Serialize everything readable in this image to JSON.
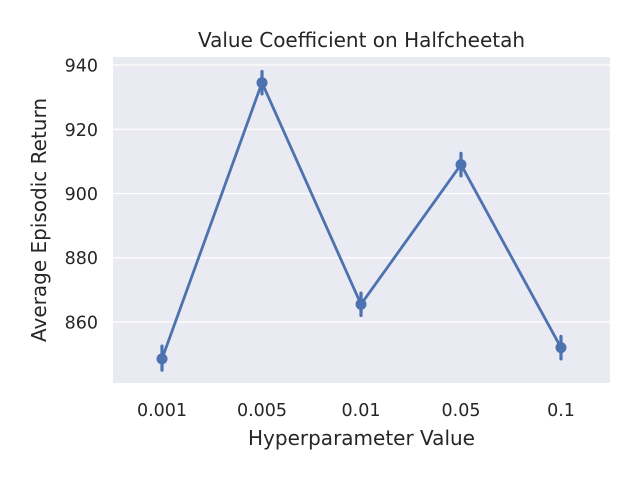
{
  "chart_data": {
    "type": "line",
    "title": "Value Coefficient on Halfcheetah",
    "xlabel": "Hyperparameter Value",
    "ylabel": "Average Episodic Return",
    "categories": [
      "0.001",
      "0.005",
      "0.01",
      "0.05",
      "0.1"
    ],
    "series": [
      {
        "values": [
          848.5,
          934.5,
          865.5,
          909.0,
          852.0
        ],
        "ci_low": [
          845.0,
          931.0,
          862.0,
          905.5,
          848.5
        ],
        "ci_high": [
          852.5,
          938.0,
          869.0,
          912.5,
          855.5
        ],
        "color": "#4c72b0"
      }
    ],
    "yticks": [
      860,
      880,
      900,
      920,
      940
    ],
    "ylim": [
      841,
      942.5
    ],
    "grid": true,
    "background_color": "#eaeaf2",
    "grid_color": "#ffffff"
  }
}
